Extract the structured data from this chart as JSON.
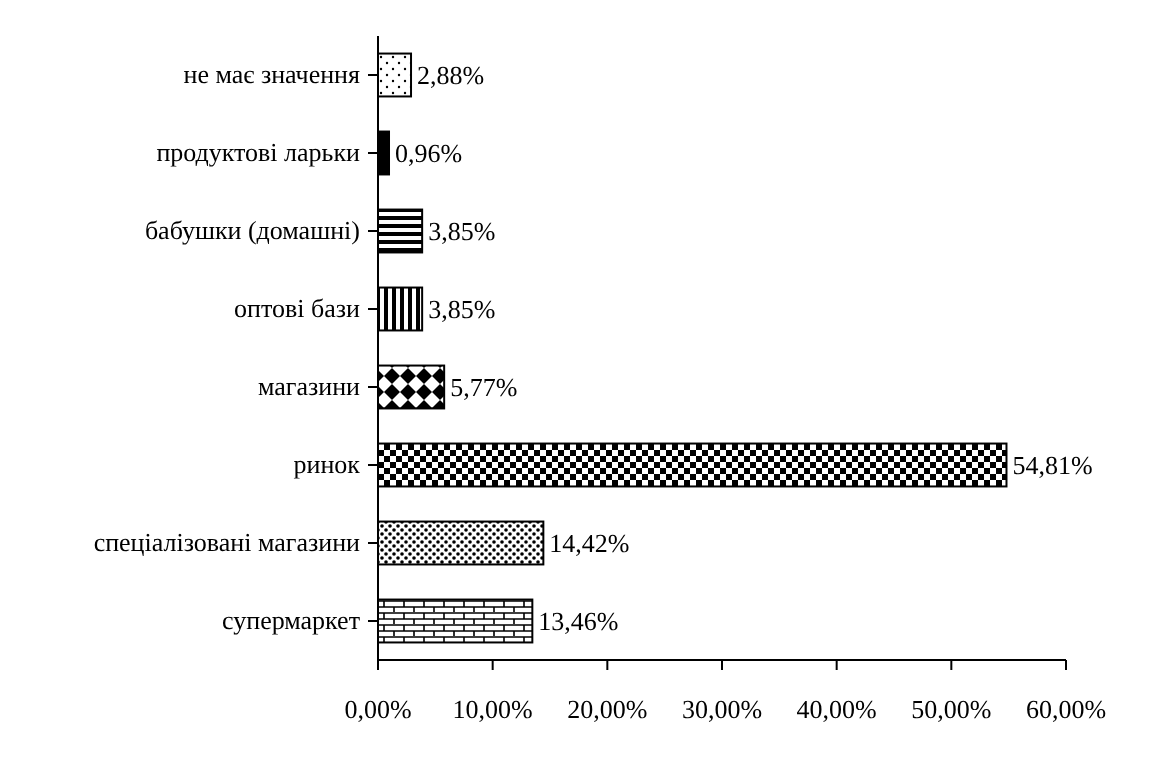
{
  "chart_data": {
    "type": "bar",
    "orientation": "horizontal",
    "categories": [
      "не має значення",
      "продуктові ларьки",
      "бабушки (домашні)",
      "оптові бази",
      "магазини",
      "ринок",
      "спеціалізовані магазини",
      "супермаркет"
    ],
    "values": [
      2.88,
      0.96,
      3.85,
      3.85,
      5.77,
      54.81,
      14.42,
      13.46
    ],
    "value_labels": [
      "2,88%",
      "0,96%",
      "3,85%",
      "3,85%",
      "5,77%",
      "54,81%",
      "14,42%",
      "13,46%"
    ],
    "color": "#000000",
    "xlim": [
      0,
      60
    ],
    "xticks": [
      {
        "value": 0,
        "label": "0,00%"
      },
      {
        "value": 10,
        "label": "10,00%"
      },
      {
        "value": 20,
        "label": "20,00%"
      },
      {
        "value": 30,
        "label": "30,00%"
      },
      {
        "value": 40,
        "label": "40,00%"
      },
      {
        "value": 50,
        "label": "50,00%"
      },
      {
        "value": 60,
        "label": "60,00%"
      }
    ],
    "grid": false
  }
}
